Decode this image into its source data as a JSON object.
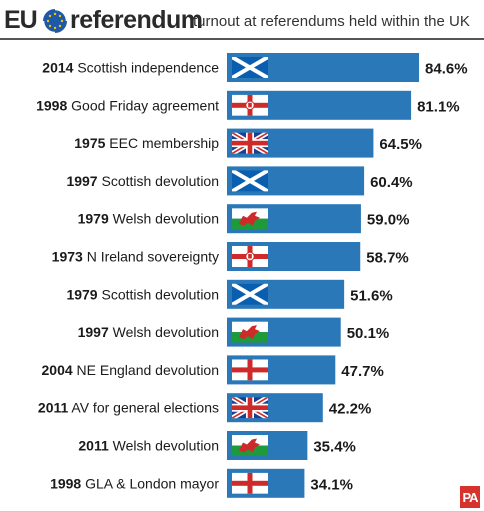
{
  "header": {
    "brand_eu": "EU",
    "brand_referendum": "referendum",
    "subtitle": "turnout at referendums held within the UK"
  },
  "colors": {
    "bar": "#2a78b8",
    "label": "#1a1a1a",
    "eu_blue": "#1d59a8",
    "eu_gold": "#f2c400",
    "pa_red": "#d6332c"
  },
  "logo_text": "PA",
  "chart_data": {
    "type": "bar",
    "orientation": "horizontal",
    "title": "",
    "xlabel": "",
    "ylabel": "",
    "xlim": [
      0,
      100
    ],
    "grid": false,
    "legend": "none",
    "categories": [
      {
        "year": "2014",
        "name": "Scottish independence",
        "flag": "scotland-flag-icon"
      },
      {
        "year": "1998",
        "name": "Good Friday agreement",
        "flag": "northern-ireland-flag-icon"
      },
      {
        "year": "1975",
        "name": "EEC membership",
        "flag": "union-jack-flag-icon"
      },
      {
        "year": "1997",
        "name": "Scottish devolution",
        "flag": "scotland-flag-icon"
      },
      {
        "year": "1979",
        "name": "Welsh devolution",
        "flag": "wales-flag-icon"
      },
      {
        "year": "1973",
        "name": "N Ireland sovereignty",
        "flag": "northern-ireland-flag-icon"
      },
      {
        "year": "1979",
        "name": "Scottish devolution",
        "flag": "scotland-flag-icon"
      },
      {
        "year": "1997",
        "name": "Welsh devolution",
        "flag": "wales-flag-icon"
      },
      {
        "year": "2004",
        "name": "NE England devolution",
        "flag": "england-flag-icon"
      },
      {
        "year": "2011",
        "name": "AV for general elections",
        "flag": "union-jack-flag-icon"
      },
      {
        "year": "2011",
        "name": "Welsh devolution",
        "flag": "wales-flag-icon"
      },
      {
        "year": "1998",
        "name": "GLA & London mayor",
        "flag": "england-flag-icon"
      }
    ],
    "values": [
      84.6,
      81.1,
      64.5,
      60.4,
      59.0,
      58.7,
      51.6,
      50.1,
      47.7,
      42.2,
      35.4,
      34.1
    ],
    "value_labels": [
      "84.6%",
      "81.1%",
      "64.5%",
      "60.4%",
      "59.0%",
      "58.7%",
      "51.6%",
      "50.1%",
      "47.7%",
      "42.2%",
      "35.4%",
      "34.1%"
    ]
  }
}
